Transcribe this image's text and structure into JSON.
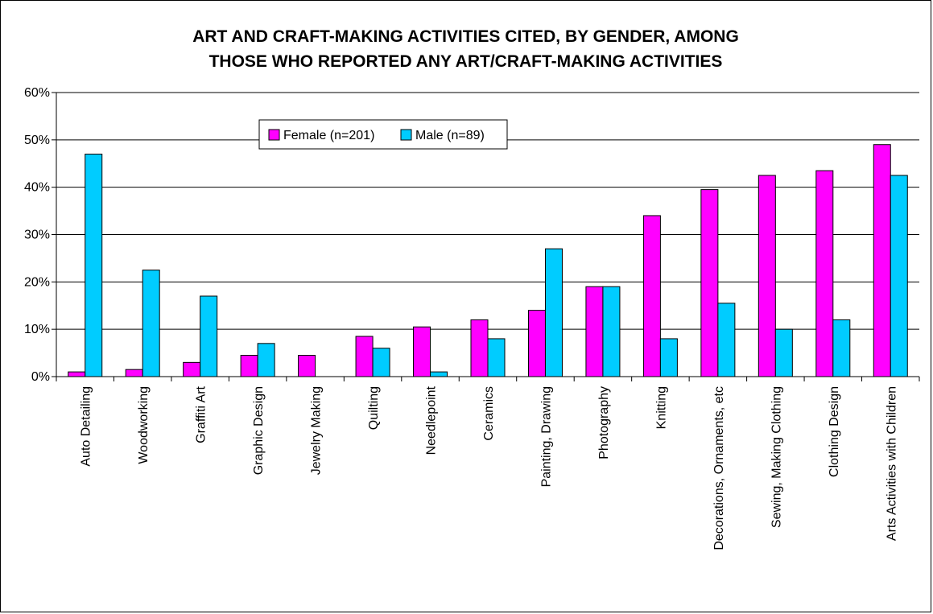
{
  "chart_data": {
    "type": "bar",
    "title_line1": "ART AND CRAFT-MAKING ACTIVITIES CITED, BY GENDER, AMONG",
    "title_line2": "THOSE WHO REPORTED ANY ART/CRAFT-MAKING ACTIVITIES",
    "ylim": [
      0,
      60
    ],
    "yticks": [
      0,
      10,
      20,
      30,
      40,
      50,
      60
    ],
    "ytick_labels": [
      "0%",
      "10%",
      "20%",
      "30%",
      "40%",
      "50%",
      "60%"
    ],
    "grid": true,
    "legend_position": "top-center",
    "categories": [
      "Auto Detailing",
      "Woodworking",
      "Graffiti Art",
      "Graphic Design",
      "Jewelry Making",
      "Quilting",
      "Needlepoint",
      "Ceramics",
      "Painting, Drawing",
      "Photography",
      "Knitting",
      "Decorations, Ornaments, etc",
      "Sewing, Making Clothing",
      "Clothing Design",
      "Arts Activities with Children"
    ],
    "series": [
      {
        "name": "Female (n=201)",
        "color": "#FF00FF",
        "values": [
          1.0,
          1.5,
          3.0,
          4.5,
          4.5,
          8.5,
          10.5,
          12.0,
          14.0,
          19.0,
          34.0,
          39.5,
          42.5,
          43.5,
          49.0
        ]
      },
      {
        "name": "Male (n=89)",
        "color": "#00CCFF",
        "values": [
          47.0,
          22.5,
          17.0,
          7.0,
          0.0,
          6.0,
          1.0,
          8.0,
          27.0,
          19.0,
          8.0,
          15.5,
          10.0,
          12.0,
          42.5
        ]
      }
    ]
  }
}
